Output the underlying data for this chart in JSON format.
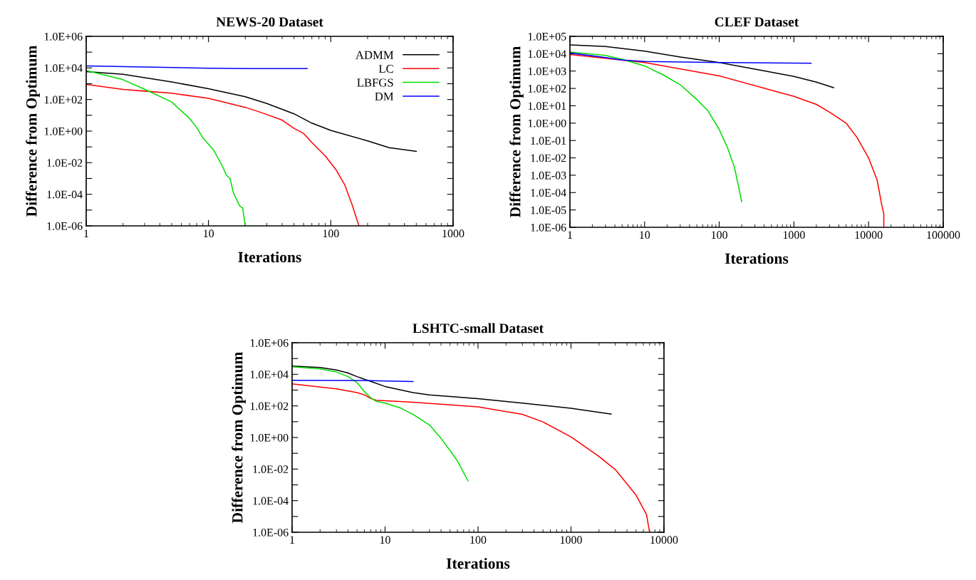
{
  "chart_data": [
    {
      "type": "line",
      "title": "NEWS-20 Dataset",
      "xlabel": "Iterations",
      "ylabel": "Difference from Optimum",
      "log": "xy",
      "grid": false,
      "legend": "top right",
      "xlim": [
        1,
        1000
      ],
      "ylim": [
        1e-06,
        1000000.0
      ],
      "xticks": [
        1,
        10,
        100,
        1000
      ],
      "yticks": [
        {
          "value": 1e-06,
          "label": "1.0E-06"
        },
        {
          "value": 1e-05,
          "label": null
        },
        {
          "value": 0.0001,
          "label": "1.0E-04"
        },
        {
          "value": 0.001,
          "label": null
        },
        {
          "value": 0.01,
          "label": "1.0E-02"
        },
        {
          "value": 0.1,
          "label": null
        },
        {
          "value": 1,
          "label": "1.0E+00"
        },
        {
          "value": 10,
          "label": null
        },
        {
          "value": 100,
          "label": "1.0E+02"
        },
        {
          "value": 1000,
          "label": null
        },
        {
          "value": 10000,
          "label": "1.0E+04"
        },
        {
          "value": 100000,
          "label": null
        },
        {
          "value": 1000000,
          "label": "1.0E+06"
        }
      ],
      "series": [
        {
          "name": "ADMM",
          "color": "#000000",
          "x": [
            1,
            2,
            5,
            10,
            20,
            30,
            50,
            70,
            100,
            200,
            300,
            500
          ],
          "values": [
            5900,
            4000,
            1300,
            480,
            150,
            56,
            12.5,
            3.2,
            1.1,
            0.24,
            0.09,
            0.052
          ]
        },
        {
          "name": "LC",
          "color": "#ff0000",
          "x": [
            1,
            2,
            3,
            5,
            10,
            20,
            28,
            40,
            50,
            60,
            70,
            90,
            110,
            130,
            150,
            170
          ],
          "values": [
            900,
            440,
            340,
            250,
            120,
            32,
            13.6,
            5,
            1.5,
            0.7,
            0.19,
            0.027,
            0.0037,
            0.0004,
            2e-05,
            1e-06
          ]
        },
        {
          "name": "LBFGS",
          "color": "#00dd00",
          "x": [
            1,
            2,
            3,
            5,
            7,
            8,
            9,
            11,
            13,
            14,
            15,
            16,
            18,
            19,
            20
          ],
          "values": [
            6800,
            1800,
            450,
            70,
            6.3,
            1.7,
            0.37,
            0.063,
            0.006,
            0.0016,
            0.001,
            0.00012,
            1.8e-05,
            1.35e-05,
            1e-06
          ]
        },
        {
          "name": "DM",
          "color": "#0000ff",
          "x": [
            1,
            10,
            20,
            64
          ],
          "values": [
            13500,
            9500,
            9000,
            9000
          ]
        }
      ]
    },
    {
      "type": "line",
      "title": "CLEF Dataset",
      "xlabel": "Iterations",
      "ylabel": "Difference from Optimum",
      "log": "xy",
      "grid": false,
      "legend": false,
      "xlim": [
        1,
        100000
      ],
      "ylim": [
        1e-06,
        100000.0
      ],
      "xticks": [
        1,
        10,
        100,
        1000,
        10000,
        100000
      ],
      "yticks": [
        {
          "value": 1e-06,
          "label": "1.0E-06"
        },
        {
          "value": 1e-05,
          "label": "1.0E-05"
        },
        {
          "value": 0.0001,
          "label": "1.0E-04"
        },
        {
          "value": 0.001,
          "label": "1.0E-03"
        },
        {
          "value": 0.01,
          "label": "1.0E-02"
        },
        {
          "value": 0.1,
          "label": "1.0E-01"
        },
        {
          "value": 1,
          "label": "1.0E+00"
        },
        {
          "value": 10,
          "label": "1.0E+01"
        },
        {
          "value": 100,
          "label": "1.0E+02"
        },
        {
          "value": 1000,
          "label": "1.0E+03"
        },
        {
          "value": 10000,
          "label": "1.0E+04"
        },
        {
          "value": 100000,
          "label": "1.0E+05"
        }
      ],
      "series": [
        {
          "color": "#000000",
          "x": [
            1,
            3,
            10,
            30,
            100,
            300,
            1000,
            2000,
            3400
          ],
          "values": [
            32000,
            26000,
            14000,
            6500,
            3100,
            1300,
            490,
            230,
            110
          ]
        },
        {
          "color": "#ff0000",
          "x": [
            1,
            10,
            100,
            1000,
            2000,
            3000,
            5000,
            7000,
            10000,
            13000,
            15000,
            16000,
            16000
          ],
          "values": [
            9000,
            3100,
            530,
            35,
            12,
            4.3,
            1,
            0.15,
            0.01,
            0.00054,
            2e-05,
            6e-06,
            1e-06
          ]
        },
        {
          "color": "#00dd00",
          "x": [
            1,
            3,
            5,
            10,
            18,
            30,
            50,
            70,
            100,
            130,
            160,
            200
          ],
          "values": [
            12400,
            8000,
            4700,
            2000,
            580,
            165,
            23,
            5.4,
            0.43,
            0.035,
            0.0028,
            3e-05
          ]
        },
        {
          "color": "#0000ff",
          "x": [
            1,
            3,
            5,
            10,
            100,
            1700
          ],
          "values": [
            11000,
            6000,
            4300,
            3600,
            3100,
            2800
          ]
        }
      ]
    },
    {
      "type": "line",
      "title": "LSHTC-small Dataset",
      "xlabel": "Iterations",
      "ylabel": "Difference from Optimum",
      "log": "xy",
      "grid": false,
      "legend": false,
      "xlim": [
        1,
        10000
      ],
      "ylim": [
        1e-06,
        1000000.0
      ],
      "xticks": [
        1,
        10,
        100,
        1000,
        10000
      ],
      "yticks": [
        {
          "value": 1e-06,
          "label": "1.0E-06"
        },
        {
          "value": 1e-05,
          "label": null
        },
        {
          "value": 0.0001,
          "label": "1.0E-04"
        },
        {
          "value": 0.001,
          "label": null
        },
        {
          "value": 0.01,
          "label": "1.0E-02"
        },
        {
          "value": 0.1,
          "label": null
        },
        {
          "value": 1,
          "label": "1.0E+00"
        },
        {
          "value": 10,
          "label": null
        },
        {
          "value": 100,
          "label": "1.0E+02"
        },
        {
          "value": 1000,
          "label": null
        },
        {
          "value": 10000,
          "label": "1.0E+04"
        },
        {
          "value": 100000,
          "label": null
        },
        {
          "value": 1000000,
          "label": "1.0E+06"
        }
      ],
      "series": [
        {
          "color": "#000000",
          "x": [
            1,
            2,
            3,
            4,
            5,
            7,
            10,
            20,
            30,
            100,
            300,
            1000,
            2700
          ],
          "values": [
            33000,
            27000,
            19000,
            12000,
            7100,
            3600,
            1700,
            700,
            500,
            290,
            150,
            71,
            30
          ]
        },
        {
          "color": "#ff0000",
          "x": [
            1,
            3,
            5,
            6,
            7,
            8,
            20,
            100,
            300,
            500,
            1000,
            2000,
            3000,
            5000,
            6500,
            7000
          ],
          "values": [
            2500,
            1200,
            700,
            500,
            300,
            230,
            170,
            88,
            29,
            9.7,
            1.1,
            0.063,
            0.0093,
            0.00023,
            1.3e-05,
            1e-06
          ]
        },
        {
          "color": "#00dd00",
          "x": [
            1,
            2,
            3,
            4,
            5,
            6,
            7,
            8,
            10,
            15,
            20,
            30,
            40,
            50,
            60,
            78
          ],
          "values": [
            30000,
            22000,
            14000,
            7100,
            3000,
            800,
            330,
            195,
            150,
            70,
            29,
            6.3,
            0.87,
            0.15,
            0.033,
            0.0018
          ]
        },
        {
          "color": "#0000ff",
          "x": [
            1,
            5,
            20
          ],
          "values": [
            4200,
            4100,
            3500
          ]
        }
      ]
    }
  ]
}
